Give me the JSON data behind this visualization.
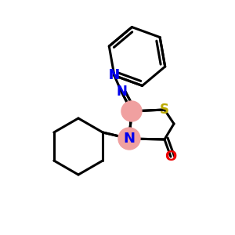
{
  "background_color": "#ffffff",
  "atom_colors": {
    "N": "#0000ee",
    "S": "#bbaa00",
    "O": "#ee0000",
    "C": "#000000"
  },
  "highlight_color": "#f0a0a0",
  "bond_color": "#000000",
  "bond_width": 2.2
}
